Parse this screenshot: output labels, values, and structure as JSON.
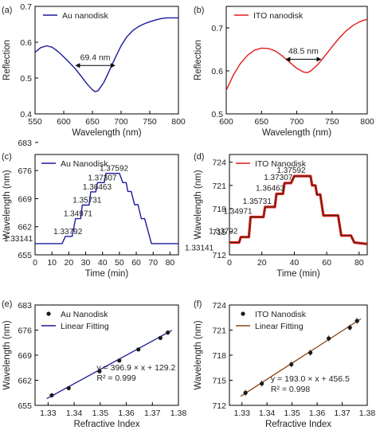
{
  "chart_data": [
    {
      "panel": "(a)",
      "type": "line",
      "xlabel": "Wavelength (nm)",
      "ylabel": "Reflection",
      "xlim": [
        550,
        800
      ],
      "ylim": [
        0.4,
        0.7
      ],
      "xticks": [
        "550",
        "600",
        "650",
        "700",
        "750",
        "800"
      ],
      "yticks": [
        "0.4",
        "0.5",
        "0.6",
        "0.7"
      ],
      "series": [
        {
          "name": "Au nanodisk",
          "color": "#1a1a9e",
          "x": [
            550,
            560,
            570,
            580,
            590,
            600,
            610,
            620,
            630,
            640,
            650,
            655,
            660,
            670,
            680,
            690,
            700,
            710,
            720,
            730,
            740,
            750,
            760,
            770,
            780,
            790,
            800
          ],
          "y": [
            0.572,
            0.585,
            0.59,
            0.586,
            0.574,
            0.559,
            0.543,
            0.526,
            0.506,
            0.485,
            0.467,
            0.462,
            0.465,
            0.488,
            0.522,
            0.557,
            0.59,
            0.615,
            0.632,
            0.643,
            0.651,
            0.657,
            0.662,
            0.666,
            0.668,
            0.668,
            0.668
          ]
        }
      ],
      "annotation": {
        "text": "69.4 nm",
        "x0": 620,
        "x1": 690,
        "y": 0.535
      },
      "legend": "top-left"
    },
    {
      "panel": "(b)",
      "type": "line",
      "xlabel": "Wavelength (nm)",
      "ylabel": "Reflection",
      "xlim": [
        600,
        800
      ],
      "ylim": [
        0.5,
        0.75
      ],
      "xticks": [
        "600",
        "650",
        "700",
        "750",
        "800"
      ],
      "yticks": [
        "0.5",
        "0.6",
        "0.7"
      ],
      "series": [
        {
          "name": "ITO nanodisk",
          "color": "#e01b1b",
          "x": [
            600,
            610,
            620,
            630,
            640,
            650,
            660,
            670,
            680,
            690,
            700,
            710,
            715,
            720,
            730,
            740,
            750,
            760,
            770,
            780,
            790,
            800
          ],
          "y": [
            0.555,
            0.59,
            0.617,
            0.636,
            0.648,
            0.653,
            0.652,
            0.646,
            0.634,
            0.62,
            0.606,
            0.597,
            0.596,
            0.6,
            0.615,
            0.635,
            0.656,
            0.676,
            0.693,
            0.706,
            0.715,
            0.72
          ]
        }
      ],
      "annotation": {
        "text": "48.5 nm",
        "x0": 684,
        "x1": 735,
        "y": 0.627
      },
      "legend": "top-left"
    },
    {
      "panel": "(c)",
      "type": "line",
      "xlabel": "Time (min)",
      "ylabel": "Wavelength (nm)",
      "xlim": [
        0,
        85
      ],
      "ylim": [
        655,
        680
      ],
      "xticks": [
        "0",
        "10",
        "20",
        "30",
        "40",
        "50",
        "60",
        "70",
        "80"
      ],
      "yticks": [
        "655",
        "662",
        "669",
        "676",
        "683"
      ],
      "series": [
        {
          "name": "Au Nanodisk",
          "color": "#1a1a9e",
          "steps": [
            [
              0,
              657.8
            ],
            [
              16,
              657.8
            ],
            [
              18,
              659.6
            ],
            [
              22,
              659.6
            ],
            [
              24,
              664.0
            ],
            [
              27,
              664.0
            ],
            [
              28,
              667.4
            ],
            [
              32,
              667.4
            ],
            [
              33,
              670.7
            ],
            [
              36,
              670.7
            ],
            [
              37,
              673.0
            ],
            [
              41,
              673.0
            ],
            [
              42,
              675.3
            ],
            [
              50,
              675.3
            ],
            [
              52,
              673.0
            ],
            [
              54,
              673.0
            ],
            [
              55,
              670.8
            ],
            [
              57,
              670.8
            ],
            [
              59,
              667.5
            ],
            [
              61,
              667.5
            ],
            [
              63,
              664.0
            ],
            [
              65,
              664.0
            ],
            [
              69,
              657.8
            ],
            [
              85,
              657.8
            ]
          ]
        }
      ],
      "step_labels": [
        "1.33141",
        "1.33792",
        "1.34971",
        "1.35731",
        "1.36463",
        "1.37307",
        "1.37592"
      ],
      "legend": "top-left"
    },
    {
      "panel": "(d)",
      "type": "line",
      "xlabel": "Time (min)",
      "ylabel": "Wavelength (nm)",
      "xlim": [
        0,
        85
      ],
      "ylim": [
        712,
        725
      ],
      "xticks": [
        "0",
        "20",
        "40",
        "60",
        "80"
      ],
      "yticks": [
        "712",
        "715",
        "718",
        "721",
        "724"
      ],
      "series": [
        {
          "name": "ITO Nanodisk",
          "color": "#e01b1b",
          "steps": [
            [
              0,
              713.6
            ],
            [
              6,
              713.6
            ],
            [
              7,
              714.3
            ],
            [
              12,
              714.3
            ],
            [
              13,
              716.9
            ],
            [
              21,
              716.9
            ],
            [
              22,
              718.2
            ],
            [
              28,
              718.2
            ],
            [
              29,
              719.9
            ],
            [
              33,
              719.9
            ],
            [
              34,
              721.3
            ],
            [
              38,
              721.3
            ],
            [
              40,
              722.2
            ],
            [
              50,
              722.2
            ],
            [
              51,
              721.0
            ],
            [
              53,
              721.0
            ],
            [
              54,
              719.8
            ],
            [
              56,
              719.8
            ],
            [
              58,
              717.1
            ],
            [
              67,
              717.1
            ],
            [
              69,
              714.5
            ],
            [
              75,
              714.5
            ],
            [
              77,
              713.6
            ],
            [
              85,
              713.4
            ]
          ]
        }
      ],
      "step_labels": [
        "1.33141",
        "1.33792",
        "1.34971",
        "1.35731",
        "1.36463",
        "1.37307",
        "1.37592"
      ],
      "legend": "top-left"
    },
    {
      "panel": "(e)",
      "type": "scatter",
      "xlabel": "Refractive Index",
      "ylabel": "Wavelength (nm)",
      "xlim": [
        1.325,
        1.38
      ],
      "ylim": [
        655,
        683
      ],
      "xticks": [
        "1.33",
        "1.34",
        "1.35",
        "1.36",
        "1.37",
        "1.38"
      ],
      "yticks": [
        "655",
        "662",
        "669",
        "676",
        "683"
      ],
      "series": [
        {
          "name": "Au Nanodisk",
          "color": "#1a1a1a",
          "x": [
            1.33141,
            1.33792,
            1.34971,
            1.35731,
            1.36463,
            1.37307,
            1.37592
          ],
          "y": [
            657.8,
            659.8,
            664.5,
            667.5,
            670.6,
            673.8,
            675.3
          ]
        },
        {
          "name": "Linear Fitting",
          "color": "#1a1a9e",
          "slope": 396.9,
          "intercept": 129.2
        }
      ],
      "equation": "y = 396.9 × x + 129.2",
      "r2": "R² = 0.999",
      "legend": "top-left"
    },
    {
      "panel": "(f)",
      "type": "scatter",
      "xlabel": "Refractive Index",
      "ylabel": "Wavelength (nm)",
      "xlim": [
        1.325,
        1.38
      ],
      "ylim": [
        712,
        724
      ],
      "xticks": [
        "1.33",
        "1.34",
        "1.35",
        "1.36",
        "1.37",
        "1.38"
      ],
      "yticks": [
        "712",
        "715",
        "718",
        "721",
        "724"
      ],
      "series": [
        {
          "name": "ITO Nanodisk",
          "color": "#1a1a1a",
          "x": [
            1.33141,
            1.33792,
            1.34971,
            1.35731,
            1.36463,
            1.37307,
            1.37592
          ],
          "y": [
            713.5,
            714.6,
            716.9,
            718.3,
            720.0,
            721.3,
            722.1
          ]
        },
        {
          "name": "Linear Fitting",
          "color": "#8b4513",
          "slope": 193.0,
          "intercept": 456.5
        }
      ],
      "equation": "y = 193.0 × x + 456.5",
      "r2": "R² = 0.998",
      "legend": "top-left"
    }
  ]
}
